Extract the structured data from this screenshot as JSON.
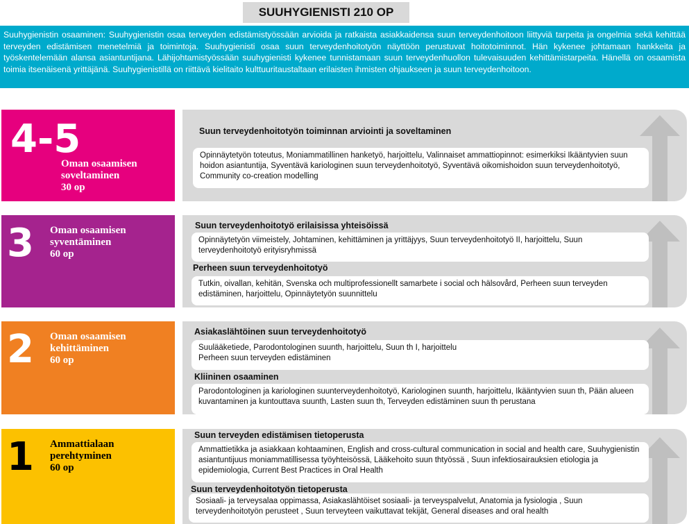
{
  "title": "SUUHYGIENISTI 210 OP",
  "intro": "Suuhygienistin osaaminen: Suuhygienistin osaa terveyden edistämistyössään arvioida ja ratkaista asiakkaidensa suun terveydenhoitoon liittyviä tarpeita ja ongelmia sekä kehittää terveyden edistämisen menetelmiä ja toimintoja. Suuhygienisti osaa suun terveydenhoitotyön näyttöön perustuvat hoitotoiminnot. Hän kykenee johtamaan hankkeita ja työskentelemään alansa asiantuntijana. Lähijohtamistyössään suuhygienisti kykenee tunnistamaan suun terveydenhuollon tulevaisuuden kehittämistarpeita. Hänellä on osaamista toimia itsenäisenä yrittäjänä. Suuhygienistillä on riittävä kielitaito kulttuuritaustaltaan erilaisten ihmisten ohjaukseen ja suun terveydenhoitoon.",
  "colors": {
    "level45": "#e6007e",
    "level3": "#a5238e",
    "level2": "#f08022",
    "level1": "#fcc100",
    "intro": "#00aacc",
    "panel": "#d9d9d9",
    "arrow": "#bfbfbf"
  },
  "levels": [
    {
      "number": "4-5",
      "label1": "Oman osaamisen",
      "label2": "soveltaminen",
      "credits": "30 op",
      "sections": [
        {
          "heading": "Suun terveydenhoitotyön toiminnan arviointi ja soveltaminen",
          "text": "Opinnäytetyön toteutus, Moniammatillinen hanketyö, harjoittelu, Valinnaiset ammattiopinnot:  esimerkiksi Ikääntyvien suun hoidon asiantuntija, Syventävä kariologinen suun terveydenhoitotyö, Syventävä oikomishoidon suun terveydenhoitotyö, Community co-creation modelling"
        }
      ]
    },
    {
      "number": "3",
      "label1": "Oman osaamisen",
      "label2": "syventäminen",
      "credits": "60 op",
      "sections": [
        {
          "heading": "Suun terveydenhoitotyö erilaisissa yhteisöissä",
          "text": "Opinnäytetyön viimeistely,  Johtaminen, kehittäminen ja yrittäjyys, Suun terveydenhoitotyö II, harjoittelu, Suun terveydenhoitotyö erityisryhmissä"
        },
        {
          "heading": "Perheen suun terveydenhoitotyö",
          "text": "Tutkin, oivallan, kehitän, Svenska och multiprofessionellt samarbete i social och hälsovård, Perheen suun terveyden edistäminen, harjoittelu, Opinnäytetyön suunnittelu"
        }
      ]
    },
    {
      "number": "2",
      "label1": "Oman osaamisen",
      "label2": "kehittäminen",
      "credits": "60 op",
      "sections": [
        {
          "heading": "Asiakaslähtöinen suun terveydenhoitotyö",
          "text": "Suulääketiede, Parodontologinen suunth, harjoittelu, Suun th I, harjoittelu",
          "text2": "Perheen suun terveyden edistäminen"
        },
        {
          "heading": "Kliininen osaaminen",
          "text": "Parodontologinen ja kariologinen suunterveydenhoitotyö, Kariologinen suunth, harjoittelu, Ikääntyvien suun th, Pään alueen kuvantaminen ja kuntouttava suunth, Lasten suun th, Terveyden edistäminen suun th perustana"
        }
      ]
    },
    {
      "number": "1",
      "label1": "Ammattialaan",
      "label2": "perehtyminen",
      "credits": "60 op",
      "sections": [
        {
          "heading": "Suun terveyden edistämisen tietoperusta",
          "text": "Ammattietikka ja asiakkaan kohtaaminen, English and cross-cultural communication in social and health care, Suuhygienistin asiantuntijuus moniammatillisessa työyhteisössä, Lääkehoito suun thtyössä , Suun infektiosairauksien etiologia ja epidemiologia, Current Best Practices in Oral Health"
        },
        {
          "heading": "Suun terveydenhoitotyön tietoperusta",
          "text": "Sosiaali- ja terveysalaa oppimassa, Asiakaslähtöiset sosiaali- ja terveyspalvelut, Anatomia ja fysiologia ,  Suun terveydenhoitotyön perusteet , Suun terveyteen vaikuttavat tekijät, General diseases and oral health"
        }
      ]
    }
  ]
}
